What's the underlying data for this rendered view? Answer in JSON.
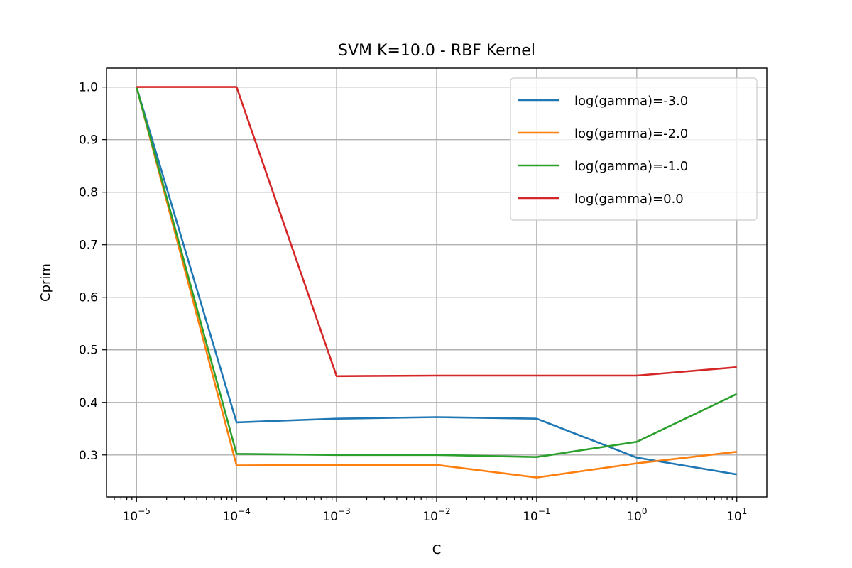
{
  "chart_data": {
    "type": "line",
    "title": "SVM K=10.0 - RBF Kernel",
    "xlabel": "C",
    "ylabel": "Cprim",
    "xscale": "log",
    "x": [
      1e-05,
      0.0001,
      0.001,
      0.01,
      0.1,
      1,
      10
    ],
    "x_tick_labels": [
      {
        "base": "10",
        "exp": "−5"
      },
      {
        "base": "10",
        "exp": "−4"
      },
      {
        "base": "10",
        "exp": "−3"
      },
      {
        "base": "10",
        "exp": "−2"
      },
      {
        "base": "10",
        "exp": "−1"
      },
      {
        "base": "10",
        "exp": "0"
      },
      {
        "base": "10",
        "exp": "1"
      }
    ],
    "y_ticks": [
      0.3,
      0.4,
      0.5,
      0.6,
      0.7,
      0.8,
      0.9,
      1.0
    ],
    "y_tick_labels": [
      "0.3",
      "0.4",
      "0.5",
      "0.6",
      "0.7",
      "0.8",
      "0.9",
      "1.0"
    ],
    "ylim": [
      0.22,
      1.036
    ],
    "grid": true,
    "legend_position": "top-right",
    "series": [
      {
        "name": "log(gamma)=-3.0",
        "color": "#1f77b4",
        "values": [
          1.0,
          0.362,
          0.369,
          0.372,
          0.369,
          0.295,
          0.263
        ]
      },
      {
        "name": "log(gamma)=-2.0",
        "color": "#ff7f0e",
        "values": [
          1.0,
          0.28,
          0.281,
          0.281,
          0.257,
          0.284,
          0.306
        ]
      },
      {
        "name": "log(gamma)=-1.0",
        "color": "#2ca02c",
        "values": [
          1.0,
          0.302,
          0.3,
          0.3,
          0.296,
          0.325,
          0.416
        ]
      },
      {
        "name": "log(gamma)=0.0",
        "color": "#d62728",
        "values": [
          1.0,
          1.0,
          0.45,
          0.451,
          0.451,
          0.451,
          0.467
        ]
      }
    ]
  }
}
